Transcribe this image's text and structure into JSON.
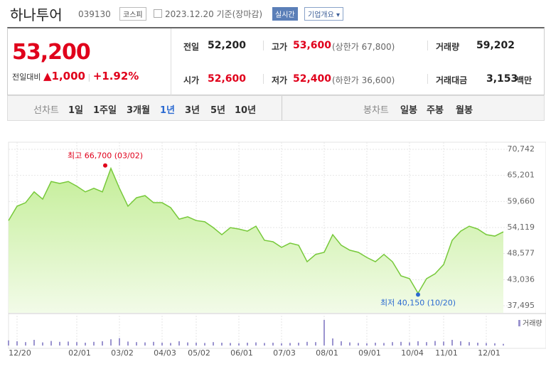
{
  "header": {
    "name": "하나투어",
    "code": "039130",
    "market": "코스피",
    "date": "2023.12.20 기준(장마감)",
    "realtime": "실시간",
    "company_info": "기업개요"
  },
  "quote": {
    "price": "53,200",
    "change_label": "전일대비",
    "change": "1,000",
    "change_rate": "+1.92%"
  },
  "stats": [
    {
      "label": "전일",
      "value": "52,200"
    },
    {
      "label": "고가",
      "value": "53,600",
      "note": "(상한가 67,800)"
    },
    {
      "label": "거래량",
      "value": "59,202"
    },
    {
      "label": "시가",
      "value": "52,600"
    },
    {
      "label": "저가",
      "value": "52,400",
      "note": "(하한가 36,600)"
    },
    {
      "label": "거래대금",
      "value": "3,153",
      "unit": "백만"
    }
  ],
  "tabs": {
    "line_label": "선차트",
    "line": [
      "1일",
      "1주일",
      "3개월",
      "1년",
      "3년",
      "5년",
      "10년"
    ],
    "active_index": 3,
    "candle_label": "봉차트",
    "candle": [
      "일봉",
      "주봉",
      "월봉"
    ]
  },
  "chart_data": {
    "type": "line",
    "categories": [
      null,
      "12/20",
      null,
      null,
      null,
      null,
      null,
      null,
      "02/01",
      null,
      null,
      null,
      null,
      "03/02",
      null,
      null,
      null,
      null,
      "04/03",
      null,
      null,
      null,
      "05/02",
      null,
      null,
      null,
      null,
      "06/01",
      null,
      null,
      null,
      null,
      "07/03",
      null,
      null,
      null,
      null,
      "08/01",
      null,
      null,
      null,
      null,
      "09/01",
      null,
      null,
      null,
      null,
      "10/04",
      null,
      null,
      null,
      "11/01",
      null,
      null,
      null,
      null,
      "12/01",
      null,
      null
    ],
    "series": [
      {
        "color": "#77c93a",
        "values": [
          55600,
          58650,
          59400,
          61700,
          60150,
          63900,
          63500,
          63900,
          62900,
          61700,
          62450,
          61700,
          66700,
          62450,
          58650,
          60450,
          60900,
          59400,
          59400,
          58350,
          55900,
          56400,
          55600,
          55350,
          54100,
          52600,
          54100,
          53800,
          53350,
          54400,
          51400,
          51100,
          49900,
          50800,
          50350,
          46850,
          48400,
          48850,
          52600,
          50350,
          49300,
          48850,
          47750,
          46850,
          48400,
          46850,
          43850,
          43250,
          40150,
          43250,
          44300,
          46250,
          51400,
          53350,
          54400,
          53800,
          52600,
          52300,
          53200
        ]
      },
      {
        "name": "거래량",
        "type": "bar",
        "color": "#9b94cf",
        "values": [
          180000,
          150000,
          120000,
          200000,
          110000,
          160000,
          130000,
          140000,
          120000,
          100000,
          130000,
          150000,
          220000,
          260000,
          140000,
          120000,
          110000,
          130000,
          100000,
          90000,
          150000,
          110000,
          100000,
          90000,
          120000,
          100000,
          90000,
          80000,
          100000,
          110000,
          90000,
          100000,
          80000,
          90000,
          100000,
          130000,
          120000,
          900000,
          250000,
          150000,
          110000,
          90000,
          80000,
          100000,
          90000,
          120000,
          130000,
          110000,
          150000,
          120000,
          160000,
          140000,
          200000,
          150000,
          120000,
          100000,
          90000,
          80000,
          59202
        ]
      }
    ],
    "max_label": "최고 66,700 (03/02)",
    "min_label": "최저 40,150 (10/20)",
    "ylim": [
      37495,
      70742
    ],
    "yticks": [
      {
        "value": 70742,
        "label": "70,742"
      },
      {
        "value": 65201,
        "label": "65,201"
      },
      {
        "value": 59660,
        "label": "59,660"
      },
      {
        "value": 54119,
        "label": "54,119"
      },
      {
        "value": 48577,
        "label": "48,577"
      },
      {
        "value": 43036,
        "label": "43,036"
      },
      {
        "value": 37495,
        "label": "37,495"
      }
    ],
    "grid": true
  }
}
